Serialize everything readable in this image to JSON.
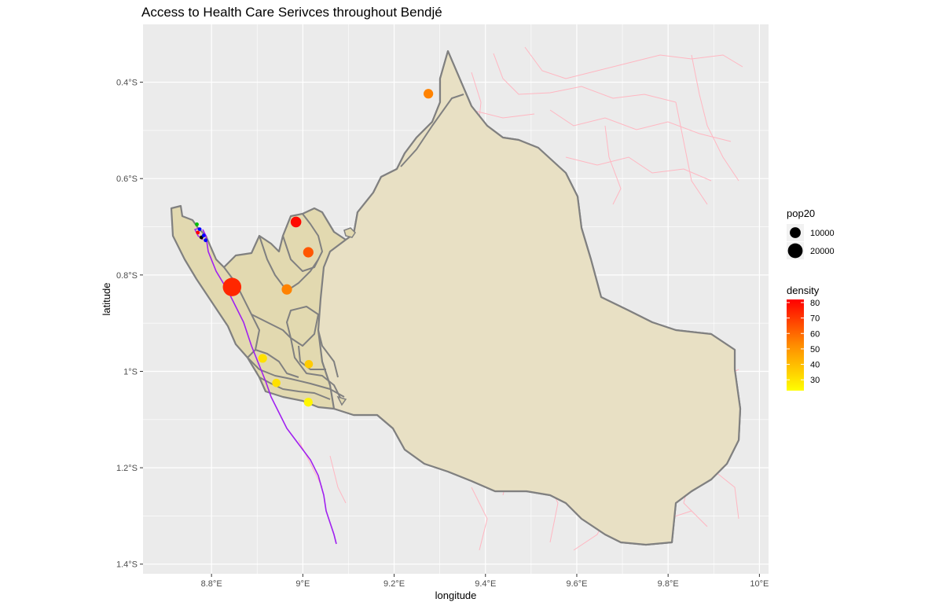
{
  "title": "Access to Health Care Serivces throughout Bendjé",
  "axes": {
    "x_label": "longitude",
    "y_label": "latitude",
    "x_ticks": [
      "8.8°E",
      "9°E",
      "9.2°E",
      "9.4°E",
      "9.6°E",
      "9.8°E",
      "10°E"
    ],
    "x_values": [
      8.8,
      9.0,
      9.2,
      9.4,
      9.6,
      9.8,
      10.0
    ],
    "y_ticks": [
      "0.4°S",
      "0.6°S",
      "0.8°S",
      "1°S",
      "1.2°S",
      "1.4°S"
    ],
    "y_values": [
      -0.4,
      -0.6,
      -0.8,
      -1.0,
      -1.2,
      -1.4
    ],
    "xlim": [
      8.65,
      10.02
    ],
    "ylim": [
      -1.42,
      -0.28
    ]
  },
  "legend": {
    "size": {
      "title": "pop20",
      "entries": [
        {
          "label": "10000",
          "value": 10000
        },
        {
          "label": "20000",
          "value": 20000
        }
      ]
    },
    "color": {
      "title": "density",
      "ticks": [
        "80",
        "70",
        "60",
        "50",
        "40",
        "30"
      ],
      "tick_values": [
        80,
        70,
        60,
        50,
        40,
        30
      ],
      "range": [
        23,
        82
      ],
      "low_color": "#ffff00",
      "high_color": "#ff0000"
    }
  },
  "colors": {
    "panel_bg": "#ebebeb",
    "grid": "#ffffff",
    "region_fill": "#e2d9b0",
    "region_stroke": "#808080",
    "roads": "#ffb6c1",
    "river": "#a020f0"
  },
  "chart_data": {
    "type": "scatter",
    "x_field": "longitude",
    "y_field": "latitude",
    "points": [
      {
        "lon": 9.275,
        "lat": -0.424,
        "pop20": 5000,
        "density": 52
      },
      {
        "lon": 8.985,
        "lat": -0.69,
        "pop20": 6500,
        "density": 80
      },
      {
        "lon": 9.012,
        "lat": -0.753,
        "pop20": 6000,
        "density": 62
      },
      {
        "lon": 8.845,
        "lat": -0.825,
        "pop20": 23000,
        "density": 73
      },
      {
        "lon": 8.965,
        "lat": -0.83,
        "pop20": 6000,
        "density": 52
      },
      {
        "lon": 8.912,
        "lat": -0.973,
        "pop20": 4000,
        "density": 30
      },
      {
        "lon": 9.013,
        "lat": -0.985,
        "pop20": 3500,
        "density": 35
      },
      {
        "lon": 8.942,
        "lat": -1.024,
        "pop20": 3500,
        "density": 30
      },
      {
        "lon": 9.012,
        "lat": -1.064,
        "pop20": 4000,
        "density": 25
      }
    ],
    "health_facilities": [
      {
        "lon": 8.768,
        "lat": -0.695,
        "color": "#00c000"
      },
      {
        "lon": 8.77,
        "lat": -0.712,
        "color": "#ff0000"
      },
      {
        "lon": 8.778,
        "lat": -0.722,
        "color": "#000000"
      },
      {
        "lon": 8.783,
        "lat": -0.718,
        "color": "#0000ff"
      },
      {
        "lon": 8.787,
        "lat": -0.728,
        "color": "#0000ff"
      },
      {
        "lon": 8.774,
        "lat": -0.705,
        "color": "#0000ff"
      }
    ]
  }
}
